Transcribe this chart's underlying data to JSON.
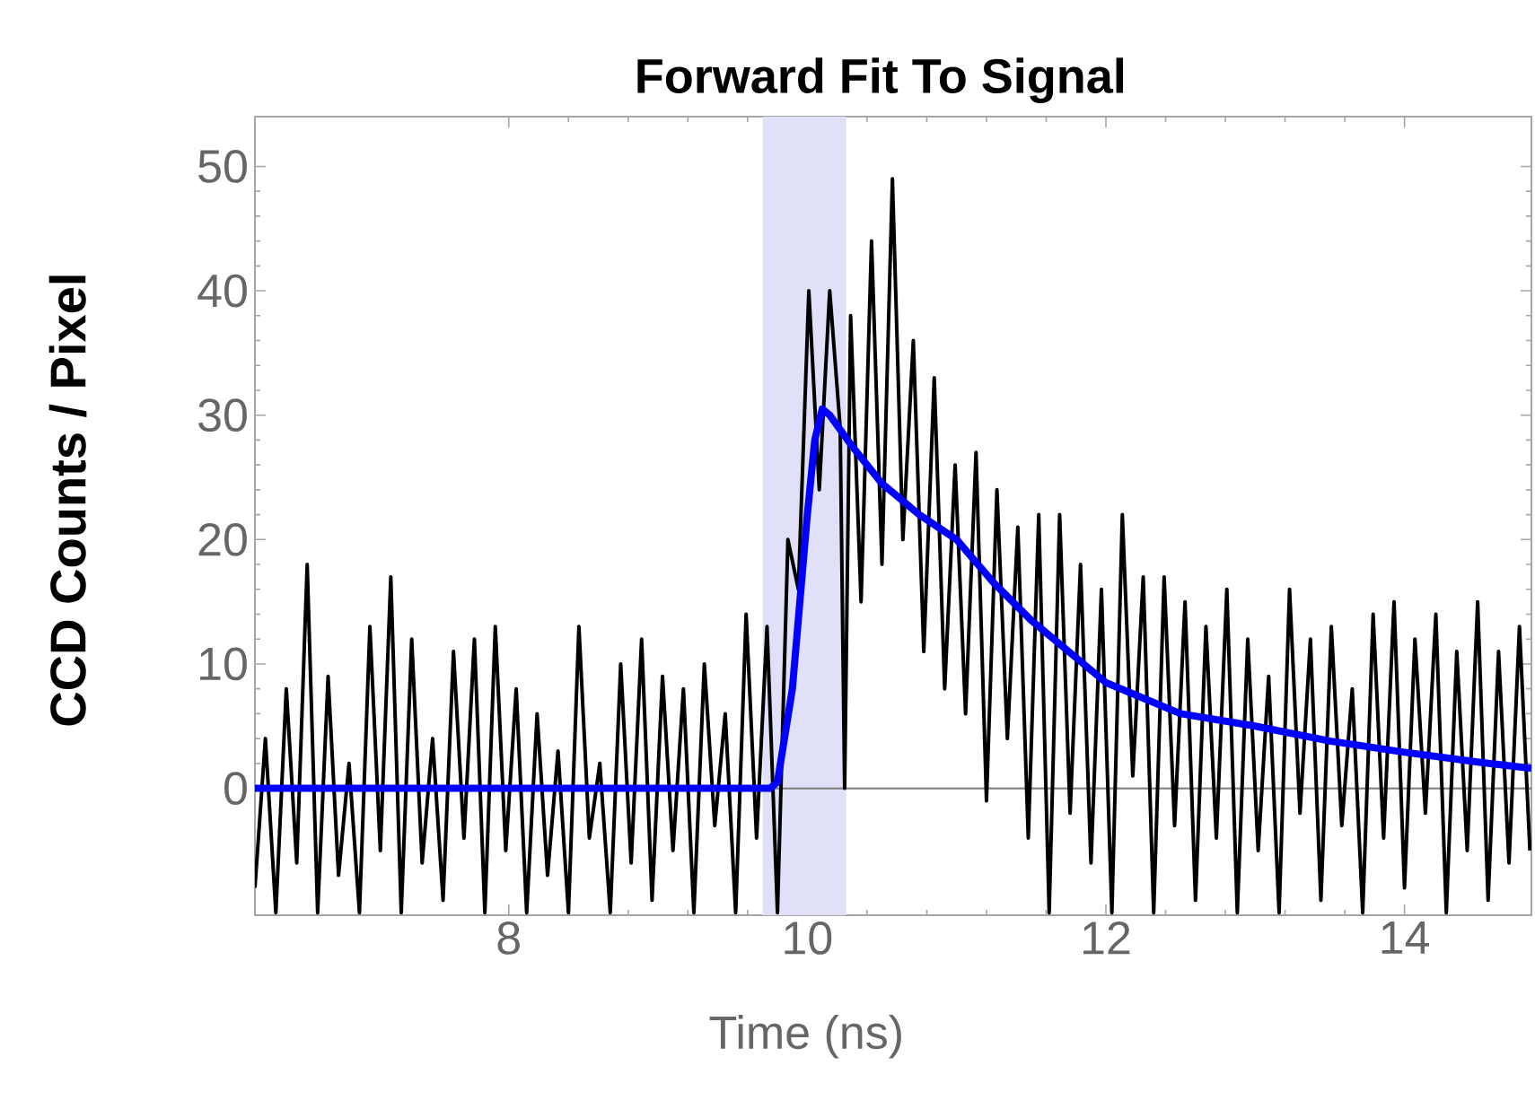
{
  "chart_data": {
    "type": "line",
    "title": "Forward Fit To Signal",
    "xlabel": "Time (ns)",
    "ylabel": "CCD Counts / Pixel",
    "xlim": [
      6.3,
      14.85
    ],
    "ylim": [
      -10.2,
      54
    ],
    "xticks": [
      8,
      10,
      12,
      14
    ],
    "yticks": [
      0,
      10,
      20,
      30,
      40,
      50
    ],
    "grid": false,
    "bands": [
      {
        "axis": "x",
        "from": 9.7,
        "to": 10.26,
        "color": "#e0e0f8"
      }
    ],
    "ref_lines": [
      {
        "axis": "y",
        "value": 0,
        "color": "#808080"
      }
    ],
    "series": [
      {
        "color": "#000000",
        "x": [
          6.3,
          6.37,
          6.44,
          6.51,
          6.58,
          6.65,
          6.72,
          6.79,
          6.86,
          6.93,
          7.0,
          7.07,
          7.14,
          7.21,
          7.28,
          7.35,
          7.42,
          7.49,
          7.56,
          7.63,
          7.7,
          7.77,
          7.84,
          7.91,
          7.98,
          8.05,
          8.12,
          8.19,
          8.26,
          8.33,
          8.4,
          8.47,
          8.54,
          8.61,
          8.68,
          8.75,
          8.82,
          8.89,
          8.96,
          9.03,
          9.1,
          9.17,
          9.24,
          9.31,
          9.38,
          9.45,
          9.52,
          9.59,
          9.66,
          9.73,
          9.8,
          9.87,
          9.94,
          10.01,
          10.08,
          10.15,
          10.22,
          10.25,
          10.29,
          10.36,
          10.43,
          10.5,
          10.57,
          10.64,
          10.71,
          10.78,
          10.85,
          10.92,
          10.99,
          11.06,
          11.13,
          11.2,
          11.27,
          11.34,
          11.41,
          11.48,
          11.55,
          11.62,
          11.69,
          11.76,
          11.83,
          11.9,
          11.97,
          12.04,
          12.11,
          12.18,
          12.25,
          12.32,
          12.39,
          12.46,
          12.53,
          12.6,
          12.67,
          12.74,
          12.81,
          12.88,
          12.95,
          13.02,
          13.09,
          13.16,
          13.23,
          13.3,
          13.37,
          13.44,
          13.51,
          13.58,
          13.65,
          13.72,
          13.79,
          13.86,
          13.93,
          14.0,
          14.07,
          14.14,
          14.21,
          14.28,
          14.35,
          14.42,
          14.49,
          14.56,
          14.63,
          14.7,
          14.77,
          14.84
        ],
        "values": [
          -8,
          4,
          -10,
          8,
          -6,
          18,
          -10,
          9,
          -7,
          2,
          -10,
          13,
          -5,
          17,
          -10,
          12,
          -6,
          4,
          -9,
          11,
          -4,
          12,
          -10,
          13,
          -5,
          8,
          -10,
          6,
          -7,
          3,
          -10,
          13,
          -4,
          2,
          -10,
          10,
          -6,
          12,
          -9,
          9,
          -5,
          8,
          -10,
          10,
          -3,
          6,
          -10,
          14,
          -4,
          13,
          -10,
          20,
          16,
          40,
          24,
          40,
          29,
          0,
          38,
          15,
          44,
          18,
          49,
          20,
          36,
          11,
          33,
          8,
          26,
          6,
          27,
          -1,
          24,
          4,
          21,
          -4,
          22,
          -10,
          22,
          -2,
          18,
          -6,
          16,
          -10,
          22,
          1,
          17,
          -10,
          17,
          -3,
          15,
          -9,
          13,
          -4,
          16,
          -10,
          12,
          -5,
          9,
          -10,
          16,
          -2,
          12,
          -9,
          13,
          -3,
          8,
          -10,
          14,
          -4,
          15,
          -8,
          12,
          -2,
          14,
          -10,
          11,
          -5,
          15,
          -9,
          11,
          -6,
          13,
          -5
        ]
      },
      {
        "color": "#0000ff",
        "x": [
          6.3,
          9.75,
          9.8,
          9.9,
          10.0,
          10.05,
          10.1,
          10.15,
          10.3,
          10.5,
          10.75,
          11.0,
          11.25,
          11.5,
          12.0,
          12.5,
          13.0,
          13.5,
          14.0,
          14.5,
          14.85
        ],
        "values": [
          0,
          0,
          0.5,
          8,
          22,
          28,
          30.5,
          30,
          27.5,
          24.5,
          22,
          20,
          16.5,
          13.5,
          8.5,
          6,
          5,
          3.8,
          2.9,
          2.1,
          1.6
        ]
      }
    ]
  }
}
